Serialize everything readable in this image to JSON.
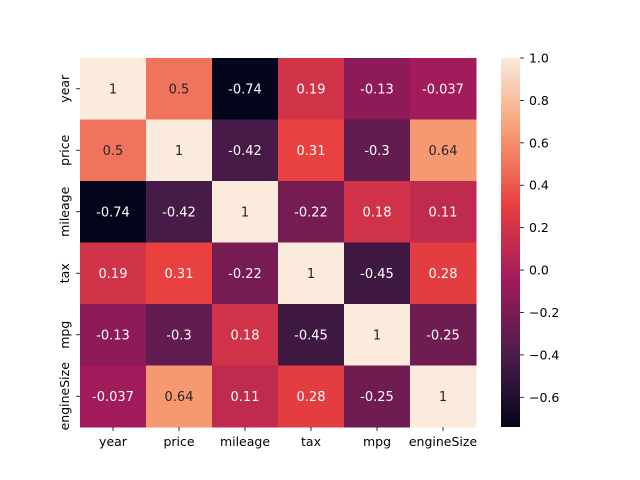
{
  "chart_data": {
    "type": "heatmap",
    "x_labels": [
      "year",
      "price",
      "mileage",
      "tax",
      "mpg",
      "engineSize"
    ],
    "y_labels": [
      "year",
      "price",
      "mileage",
      "tax",
      "mpg",
      "engineSize"
    ],
    "values": [
      [
        1,
        0.5,
        -0.74,
        0.19,
        -0.13,
        -0.037
      ],
      [
        0.5,
        1,
        -0.42,
        0.31,
        -0.3,
        0.64
      ],
      [
        -0.74,
        -0.42,
        1,
        -0.22,
        0.18,
        0.11
      ],
      [
        0.19,
        0.31,
        -0.22,
        1,
        -0.45,
        0.28
      ],
      [
        -0.13,
        -0.3,
        0.18,
        -0.45,
        1,
        -0.25
      ],
      [
        -0.037,
        0.64,
        0.11,
        0.28,
        -0.25,
        1
      ]
    ],
    "value_labels": [
      [
        "1",
        "0.5",
        "-0.74",
        "0.19",
        "-0.13",
        "-0.037"
      ],
      [
        "0.5",
        "1",
        "-0.42",
        "0.31",
        "-0.3",
        "0.64"
      ],
      [
        "-0.74",
        "-0.42",
        "1",
        "-0.22",
        "0.18",
        "0.11"
      ],
      [
        "0.19",
        "0.31",
        "-0.22",
        "1",
        "-0.45",
        "0.28"
      ],
      [
        "-0.13",
        "-0.3",
        "0.18",
        "-0.45",
        "1",
        "-0.25"
      ],
      [
        "-0.037",
        "0.64",
        "0.11",
        "0.28",
        "-0.25",
        "1"
      ]
    ],
    "colorbar": {
      "vmin": -0.74,
      "vmax": 1.0,
      "ticks": [
        1.0,
        0.8,
        0.6,
        0.4,
        0.2,
        0.0,
        -0.2,
        -0.4,
        -0.6
      ],
      "tick_labels": [
        "1.0",
        "0.8",
        "0.6",
        "0.4",
        "0.2",
        "0.0",
        "−0.2",
        "−0.4",
        "−0.6"
      ]
    },
    "colormap": "rocket",
    "colormap_stops": [
      "#03051a",
      "#4c1d4b",
      "#a11a5b",
      "#e83f3f",
      "#f69c73",
      "#faebdd"
    ],
    "title": "",
    "xlabel": "",
    "ylabel": ""
  }
}
